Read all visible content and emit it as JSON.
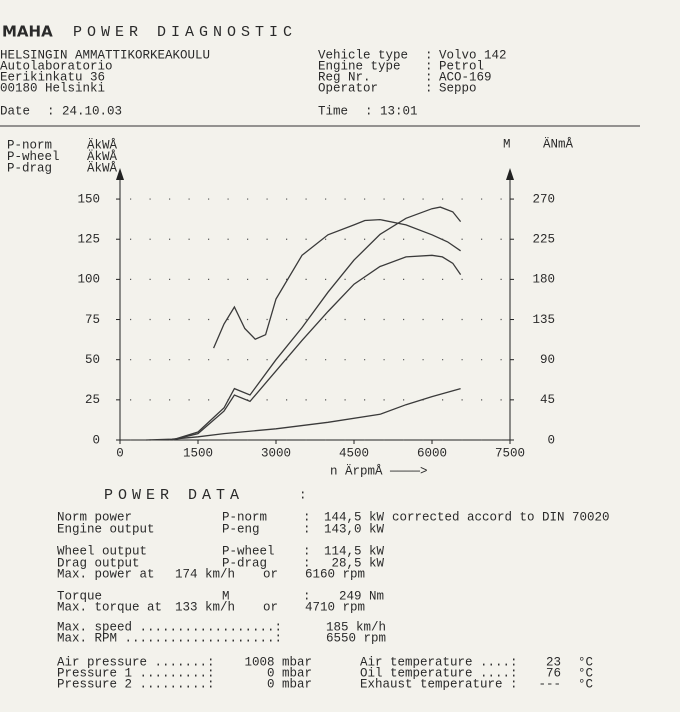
{
  "header": {
    "brand": "MAHA",
    "title": "POWER DIAGNOSTIC"
  },
  "address": [
    "HELSINGIN AMMATTIKORKEAKOULU",
    "Autolaboratorio",
    "Eerikinkatu 36",
    "00180 Helsinki"
  ],
  "date": [
    "Date",
    ":",
    "24.10.03"
  ],
  "time": [
    "Time",
    ":",
    "13:01"
  ],
  "vehicle": [
    [
      "Vehicle type",
      ":",
      "Volvo 142"
    ],
    [
      "Engine type",
      ":",
      "Petrol"
    ],
    [
      "Reg Nr.",
      ":",
      "ACO-169"
    ],
    [
      "Operator",
      ":",
      "Seppo"
    ]
  ],
  "chart_data": {
    "type": "line",
    "xlabel": "n ÄrpmÅ ————>",
    "xlim": [
      0,
      7500
    ],
    "xticks": [
      0,
      1500,
      3000,
      4500,
      6000,
      7500
    ],
    "ylim": [
      0,
      160
    ],
    "yticks": [
      0,
      25,
      50,
      75,
      100,
      125,
      150
    ],
    "y2lim": [
      0,
      288
    ],
    "y2ticks": [
      0,
      45,
      90,
      135,
      180,
      225,
      270
    ],
    "grid": true,
    "series": [
      {
        "name": "P-norm",
        "unit": "ÄkWÅ",
        "color": "#3a3a3a",
        "x": [
          1000,
          1500,
          2000,
          2200,
          2500,
          3000,
          3500,
          4000,
          4500,
          5000,
          5500,
          6000,
          6160,
          6400,
          6550
        ],
        "values": [
          0,
          5,
          20,
          32,
          28,
          50,
          70,
          92,
          112,
          128,
          138,
          144,
          145,
          142,
          136
        ]
      },
      {
        "name": "P-wheel",
        "unit": "ÄkWÅ",
        "color": "#3a3a3a",
        "x": [
          1000,
          1500,
          2000,
          2200,
          2500,
          3000,
          3500,
          4000,
          4500,
          5000,
          5500,
          6000,
          6200,
          6400,
          6550
        ],
        "values": [
          0,
          4,
          18,
          28,
          24,
          43,
          62,
          80,
          97,
          108,
          114,
          115,
          114,
          110,
          103
        ]
      },
      {
        "name": "P-drag",
        "unit": "ÄkWÅ",
        "color": "#3a3a3a",
        "x": [
          500,
          1000,
          1500,
          2000,
          3000,
          4000,
          5000,
          5500,
          6000,
          6550
        ],
        "values": [
          0,
          0.5,
          2,
          4,
          7,
          11,
          16,
          22,
          27,
          32
        ]
      },
      {
        "name": "M",
        "unit": "ÄNmÅ",
        "color": "#3a3a3a",
        "axis": "y2",
        "x": [
          1800,
          2000,
          2200,
          2400,
          2600,
          2800,
          3000,
          3500,
          4000,
          4500,
          4710,
          5000,
          5500,
          6000,
          6300,
          6550
        ],
        "values": [
          103,
          130,
          149,
          125,
          113,
          118,
          158,
          207,
          230,
          241,
          246,
          247,
          241,
          230,
          222,
          212
        ]
      }
    ]
  },
  "power_data": {
    "title": "POWER DATA",
    "colon": ":",
    "rows": [
      [
        "Norm power",
        "P-norm",
        ":",
        "144,5 kW",
        "corrected accord to DIN 70020"
      ],
      [
        "Engine output",
        "P-eng",
        ":",
        "143,0 kW"
      ],
      [
        "Wheel output",
        "P-wheel",
        ":",
        "114,5 kW"
      ],
      [
        "Drag output",
        "P-drag",
        ":",
        "28,5 kW"
      ],
      [
        "Max. power at",
        "174 km/h",
        "or",
        "6160 rpm"
      ],
      [
        "Torque",
        "M",
        ":",
        "249 Nm"
      ],
      [
        "Max. torque at",
        "133 km/h",
        "or",
        "4710 rpm"
      ],
      [
        "Max. speed ..................:",
        "185 km/h"
      ],
      [
        "Max. RPM ....................:",
        "6550 rpm"
      ],
      [
        "Air pressure .......:",
        "1008 mbar",
        "Air temperature ....:",
        "23",
        "°C"
      ],
      [
        "Pressure 1 .........:",
        "0 mbar",
        "Oil temperature ....:",
        "76",
        "°C"
      ],
      [
        "Pressure 2 .........:",
        "0 mbar",
        "Exhaust temperature :",
        "---",
        "°C"
      ]
    ]
  }
}
